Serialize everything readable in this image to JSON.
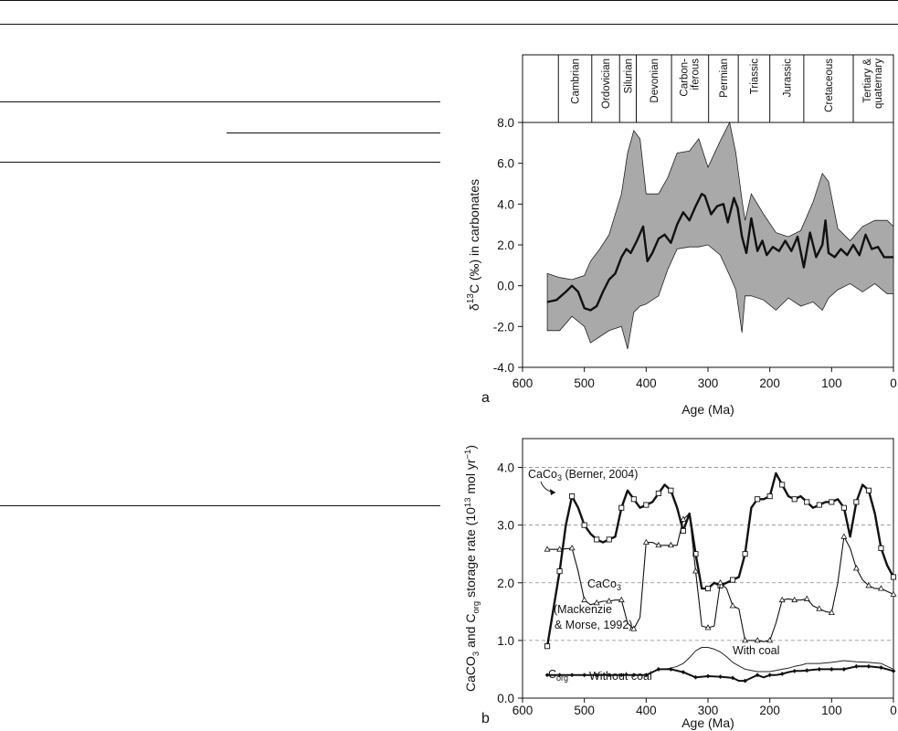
{
  "chart_data": [
    {
      "type": "area",
      "panel_label": "a",
      "title": "",
      "xlabel": "Age (Ma)",
      "ylabel_parts": {
        "pre": "δ",
        "sup": "13",
        "post": "C (‰) in carbonates"
      },
      "xlim": [
        600,
        0
      ],
      "ylim": [
        -4.0,
        8.0
      ],
      "x_ticks": [
        600,
        500,
        400,
        300,
        200,
        100,
        0
      ],
      "y_ticks": [
        -4.0,
        -2.0,
        0.0,
        2.0,
        4.0,
        6.0,
        8.0
      ],
      "x_tick_labels": [
        "600",
        "500",
        "400",
        "300",
        "200",
        "100",
        "0"
      ],
      "y_tick_labels": [
        "-4.0",
        "-2.0",
        "0.0",
        "2.0",
        "4.0",
        "6.0",
        "8.0"
      ],
      "grid": false,
      "periods": [
        {
          "name": "Cambrian",
          "start": 542,
          "end": 488
        },
        {
          "name": "Ordovician",
          "start": 488,
          "end": 443
        },
        {
          "name": "Silurian",
          "start": 443,
          "end": 416
        },
        {
          "name": "Devonian",
          "start": 416,
          "end": 359
        },
        {
          "name": "Carbon-",
          "name2": "iferous",
          "start": 359,
          "end": 299
        },
        {
          "name": "Permian",
          "start": 299,
          "end": 251
        },
        {
          "name": "Triassic",
          "start": 251,
          "end": 200
        },
        {
          "name": "Jurassic",
          "start": 200,
          "end": 145
        },
        {
          "name": "Cretaceous",
          "start": 145,
          "end": 65
        },
        {
          "name": "Tertiary &",
          "name2": "quaternary",
          "start": 65,
          "end": 0
        }
      ],
      "band": {
        "x": [
          560,
          540,
          520,
          500,
          490,
          475,
          460,
          440,
          430,
          420,
          410,
          400,
          380,
          365,
          350,
          330,
          315,
          300,
          280,
          265,
          255,
          245,
          240,
          230,
          210,
          190,
          170,
          150,
          130,
          115,
          105,
          90,
          70,
          50,
          30,
          10,
          0
        ],
        "upper": [
          0.6,
          0.4,
          0.3,
          0.5,
          1.2,
          1.8,
          2.5,
          4.5,
          6.5,
          7.6,
          7.2,
          4.5,
          4.5,
          5.3,
          6.5,
          6.6,
          7.2,
          5.8,
          7.1,
          8.0,
          6.5,
          4.2,
          3.2,
          4.5,
          3.5,
          2.6,
          2.4,
          2.7,
          4.1,
          5.5,
          5.1,
          2.8,
          2.2,
          2.9,
          3.2,
          3.2,
          2.9
        ],
        "lower": [
          -2.2,
          -2.2,
          -1.5,
          -2.0,
          -2.8,
          -2.5,
          -2.2,
          -2.0,
          -3.1,
          -1.3,
          -1.0,
          -0.9,
          -0.5,
          0.8,
          1.8,
          1.9,
          1.9,
          2.0,
          1.5,
          0.5,
          -0.2,
          -2.3,
          -0.5,
          -0.5,
          -0.7,
          -1.2,
          -0.6,
          -1.0,
          -0.8,
          -1.2,
          -0.6,
          -0.2,
          0.1,
          -0.3,
          0.1,
          -0.4,
          -0.4
        ]
      },
      "series": [
        {
          "x": [
            560,
            545,
            530,
            520,
            510,
            500,
            490,
            480,
            470,
            460,
            450,
            440,
            432,
            425,
            415,
            405,
            398,
            390,
            380,
            370,
            360,
            350,
            340,
            330,
            320,
            310,
            305,
            295,
            285,
            275,
            268,
            258,
            252,
            245,
            238,
            230,
            220,
            212,
            205,
            195,
            185,
            175,
            165,
            155,
            145,
            135,
            125,
            115,
            110,
            105,
            95,
            85,
            75,
            65,
            55,
            45,
            35,
            25,
            15,
            5,
            0
          ],
          "y": [
            -0.8,
            -0.7,
            -0.3,
            0.0,
            -0.3,
            -1.1,
            -1.2,
            -1.0,
            -0.3,
            0.3,
            0.6,
            1.4,
            1.8,
            1.6,
            2.2,
            2.9,
            1.2,
            1.6,
            2.3,
            2.5,
            2.1,
            3.0,
            3.6,
            3.2,
            3.9,
            4.5,
            4.4,
            3.5,
            3.9,
            4.0,
            3.1,
            4.3,
            3.8,
            2.4,
            1.6,
            3.3,
            1.7,
            2.2,
            1.5,
            1.9,
            1.7,
            2.2,
            1.7,
            2.4,
            0.9,
            2.6,
            1.4,
            2.0,
            3.2,
            1.6,
            1.4,
            1.8,
            1.5,
            2.0,
            1.5,
            2.5,
            1.8,
            1.9,
            1.4,
            1.4,
            1.4
          ]
        }
      ]
    },
    {
      "type": "line",
      "panel_label": "b",
      "title": "",
      "xlabel": "Age (Ma)",
      "ylabel_parts": {
        "a": "CaCO",
        "a_sub": "3",
        "b": " and C",
        "b_sub": "org",
        "c": " storage rate (10",
        "c_sup": "13",
        "d": " mol yr",
        "d_sup": "−1",
        "e": ")"
      },
      "xlim": [
        600,
        0
      ],
      "ylim": [
        0.0,
        4.5
      ],
      "x_ticks": [
        600,
        500,
        400,
        300,
        200,
        100,
        0
      ],
      "y_ticks": [
        0.0,
        1.0,
        2.0,
        3.0,
        4.0
      ],
      "x_tick_labels": [
        "600",
        "500",
        "400",
        "300",
        "200",
        "100",
        "0"
      ],
      "y_tick_labels": [
        "0.0",
        "1.0",
        "2.0",
        "3.0",
        "4.0"
      ],
      "grid": "dashed horizontal at 1.0, 2.0, 3.0, 4.0",
      "series": [
        {
          "name": "CaCo3 (Berner, 2004)",
          "marker": "square",
          "x": [
            560,
            540,
            530,
            520,
            510,
            500,
            490,
            480,
            470,
            460,
            450,
            440,
            430,
            420,
            410,
            400,
            390,
            380,
            370,
            360,
            350,
            340,
            330,
            320,
            310,
            300,
            290,
            280,
            270,
            260,
            250,
            240,
            230,
            220,
            210,
            200,
            190,
            180,
            170,
            160,
            150,
            140,
            130,
            120,
            110,
            100,
            90,
            80,
            70,
            60,
            50,
            40,
            30,
            20,
            10,
            0
          ],
          "y": [
            0.9,
            2.2,
            3.0,
            3.5,
            3.3,
            3.0,
            2.85,
            2.75,
            2.7,
            2.75,
            2.8,
            3.3,
            3.6,
            3.45,
            3.3,
            3.35,
            3.4,
            3.55,
            3.7,
            3.6,
            3.3,
            2.9,
            3.2,
            2.5,
            1.9,
            1.9,
            2.0,
            1.95,
            2.0,
            2.05,
            2.1,
            2.5,
            3.3,
            3.45,
            3.45,
            3.5,
            3.9,
            3.7,
            3.5,
            3.45,
            3.5,
            3.4,
            3.3,
            3.35,
            3.4,
            3.4,
            3.45,
            3.3,
            2.8,
            3.4,
            3.7,
            3.6,
            3.2,
            2.6,
            2.3,
            2.1
          ],
          "marker_x": [
            560,
            540,
            520,
            500,
            480,
            460,
            440,
            420,
            400,
            380,
            360,
            340,
            320,
            300,
            280,
            260,
            240,
            220,
            200,
            180,
            160,
            140,
            120,
            100,
            80,
            60,
            40,
            20,
            0
          ],
          "marker_y": [
            0.9,
            2.2,
            3.5,
            3.0,
            2.75,
            2.75,
            3.3,
            3.45,
            3.35,
            3.55,
            3.6,
            2.9,
            2.5,
            1.9,
            1.95,
            2.05,
            2.5,
            3.45,
            3.5,
            3.7,
            3.45,
            3.4,
            3.35,
            3.4,
            3.3,
            3.4,
            3.6,
            2.6,
            2.1
          ]
        },
        {
          "name": "CaCo3 (Mackenzie & Morse, 1992)",
          "marker": "triangle",
          "x": [
            560,
            540,
            520,
            510,
            500,
            490,
            480,
            470,
            460,
            450,
            440,
            430,
            420,
            410,
            400,
            390,
            380,
            370,
            360,
            350,
            340,
            330,
            320,
            310,
            300,
            290,
            280,
            270,
            260,
            250,
            240,
            230,
            220,
            210,
            200,
            190,
            180,
            170,
            160,
            150,
            140,
            130,
            120,
            110,
            100,
            90,
            80,
            70,
            60,
            50,
            40,
            30,
            20,
            10,
            0
          ],
          "y": [
            2.58,
            2.58,
            2.6,
            2.2,
            1.7,
            1.62,
            1.65,
            1.68,
            1.68,
            1.7,
            1.7,
            1.3,
            1.2,
            1.4,
            2.7,
            2.7,
            2.65,
            2.65,
            2.65,
            2.65,
            3.1,
            3.2,
            2.2,
            1.25,
            1.22,
            1.25,
            2.0,
            1.9,
            1.6,
            1.55,
            1.0,
            1.0,
            1.0,
            0.98,
            1.0,
            1.3,
            1.7,
            1.72,
            1.7,
            1.7,
            1.72,
            1.6,
            1.55,
            1.5,
            1.48,
            2.0,
            2.8,
            2.6,
            2.25,
            2.05,
            1.95,
            1.9,
            1.9,
            1.85,
            1.8
          ],
          "marker_x": [
            560,
            540,
            520,
            500,
            480,
            460,
            440,
            420,
            400,
            380,
            360,
            340,
            320,
            300,
            280,
            260,
            240,
            220,
            200,
            180,
            160,
            140,
            120,
            100,
            80,
            60,
            40,
            20,
            0
          ],
          "marker_y": [
            2.58,
            2.58,
            2.6,
            1.7,
            1.65,
            1.68,
            1.7,
            1.2,
            2.7,
            2.65,
            2.65,
            3.1,
            2.2,
            1.22,
            2.0,
            1.6,
            1.0,
            1.0,
            1.0,
            1.7,
            1.7,
            1.72,
            1.55,
            1.48,
            2.8,
            2.25,
            1.95,
            1.9,
            1.8
          ]
        },
        {
          "name": "Corg with coal",
          "marker": "none",
          "x": [
            560,
            540,
            520,
            500,
            480,
            460,
            440,
            420,
            400,
            390,
            380,
            370,
            360,
            350,
            340,
            330,
            320,
            310,
            300,
            290,
            280,
            270,
            260,
            250,
            240,
            230,
            220,
            210,
            200,
            190,
            180,
            170,
            160,
            150,
            140,
            120,
            100,
            80,
            60,
            40,
            20,
            0
          ],
          "y": [
            0.4,
            0.4,
            0.4,
            0.4,
            0.4,
            0.4,
            0.4,
            0.4,
            0.4,
            0.45,
            0.5,
            0.5,
            0.52,
            0.55,
            0.6,
            0.7,
            0.82,
            0.88,
            0.88,
            0.85,
            0.8,
            0.72,
            0.62,
            0.56,
            0.5,
            0.48,
            0.46,
            0.46,
            0.46,
            0.48,
            0.5,
            0.52,
            0.55,
            0.57,
            0.6,
            0.6,
            0.62,
            0.65,
            0.63,
            0.62,
            0.6,
            0.5
          ]
        },
        {
          "name": "Corg without coal",
          "marker": "diamond",
          "x": [
            560,
            540,
            520,
            500,
            480,
            460,
            440,
            420,
            400,
            390,
            380,
            370,
            360,
            340,
            320,
            300,
            280,
            260,
            250,
            240,
            230,
            220,
            210,
            200,
            190,
            180,
            170,
            160,
            150,
            140,
            120,
            100,
            80,
            60,
            40,
            20,
            0
          ],
          "y": [
            0.4,
            0.4,
            0.4,
            0.4,
            0.4,
            0.4,
            0.4,
            0.4,
            0.4,
            0.45,
            0.5,
            0.5,
            0.5,
            0.45,
            0.36,
            0.38,
            0.37,
            0.35,
            0.3,
            0.3,
            0.35,
            0.4,
            0.36,
            0.4,
            0.4,
            0.42,
            0.45,
            0.47,
            0.47,
            0.48,
            0.5,
            0.5,
            0.5,
            0.55,
            0.55,
            0.53,
            0.47
          ],
          "marker_x": [
            560,
            540,
            520,
            500,
            480,
            460,
            440,
            420,
            400,
            380,
            360,
            340,
            320,
            300,
            280,
            260,
            240,
            220,
            200,
            180,
            160,
            140,
            120,
            100,
            80,
            60,
            40,
            20,
            0
          ],
          "marker_y": [
            0.4,
            0.4,
            0.4,
            0.4,
            0.4,
            0.4,
            0.4,
            0.4,
            0.4,
            0.5,
            0.5,
            0.45,
            0.36,
            0.38,
            0.37,
            0.35,
            0.3,
            0.4,
            0.4,
            0.42,
            0.47,
            0.48,
            0.5,
            0.5,
            0.5,
            0.55,
            0.55,
            0.53,
            0.47
          ]
        }
      ],
      "annotations": {
        "berner": {
          "pre": "CaCo",
          "sub": "3",
          "post": " (Berner, 2004)"
        },
        "mackenzie_1": {
          "pre": "CaCo",
          "sub": "3"
        },
        "mackenzie_2": "(Mackenzie",
        "mackenzie_3": "& Morse, 1992)",
        "with_coal": "With coal",
        "corg": {
          "pre": "C",
          "sub": "org"
        },
        "without_coal": "Without coal"
      }
    }
  ]
}
